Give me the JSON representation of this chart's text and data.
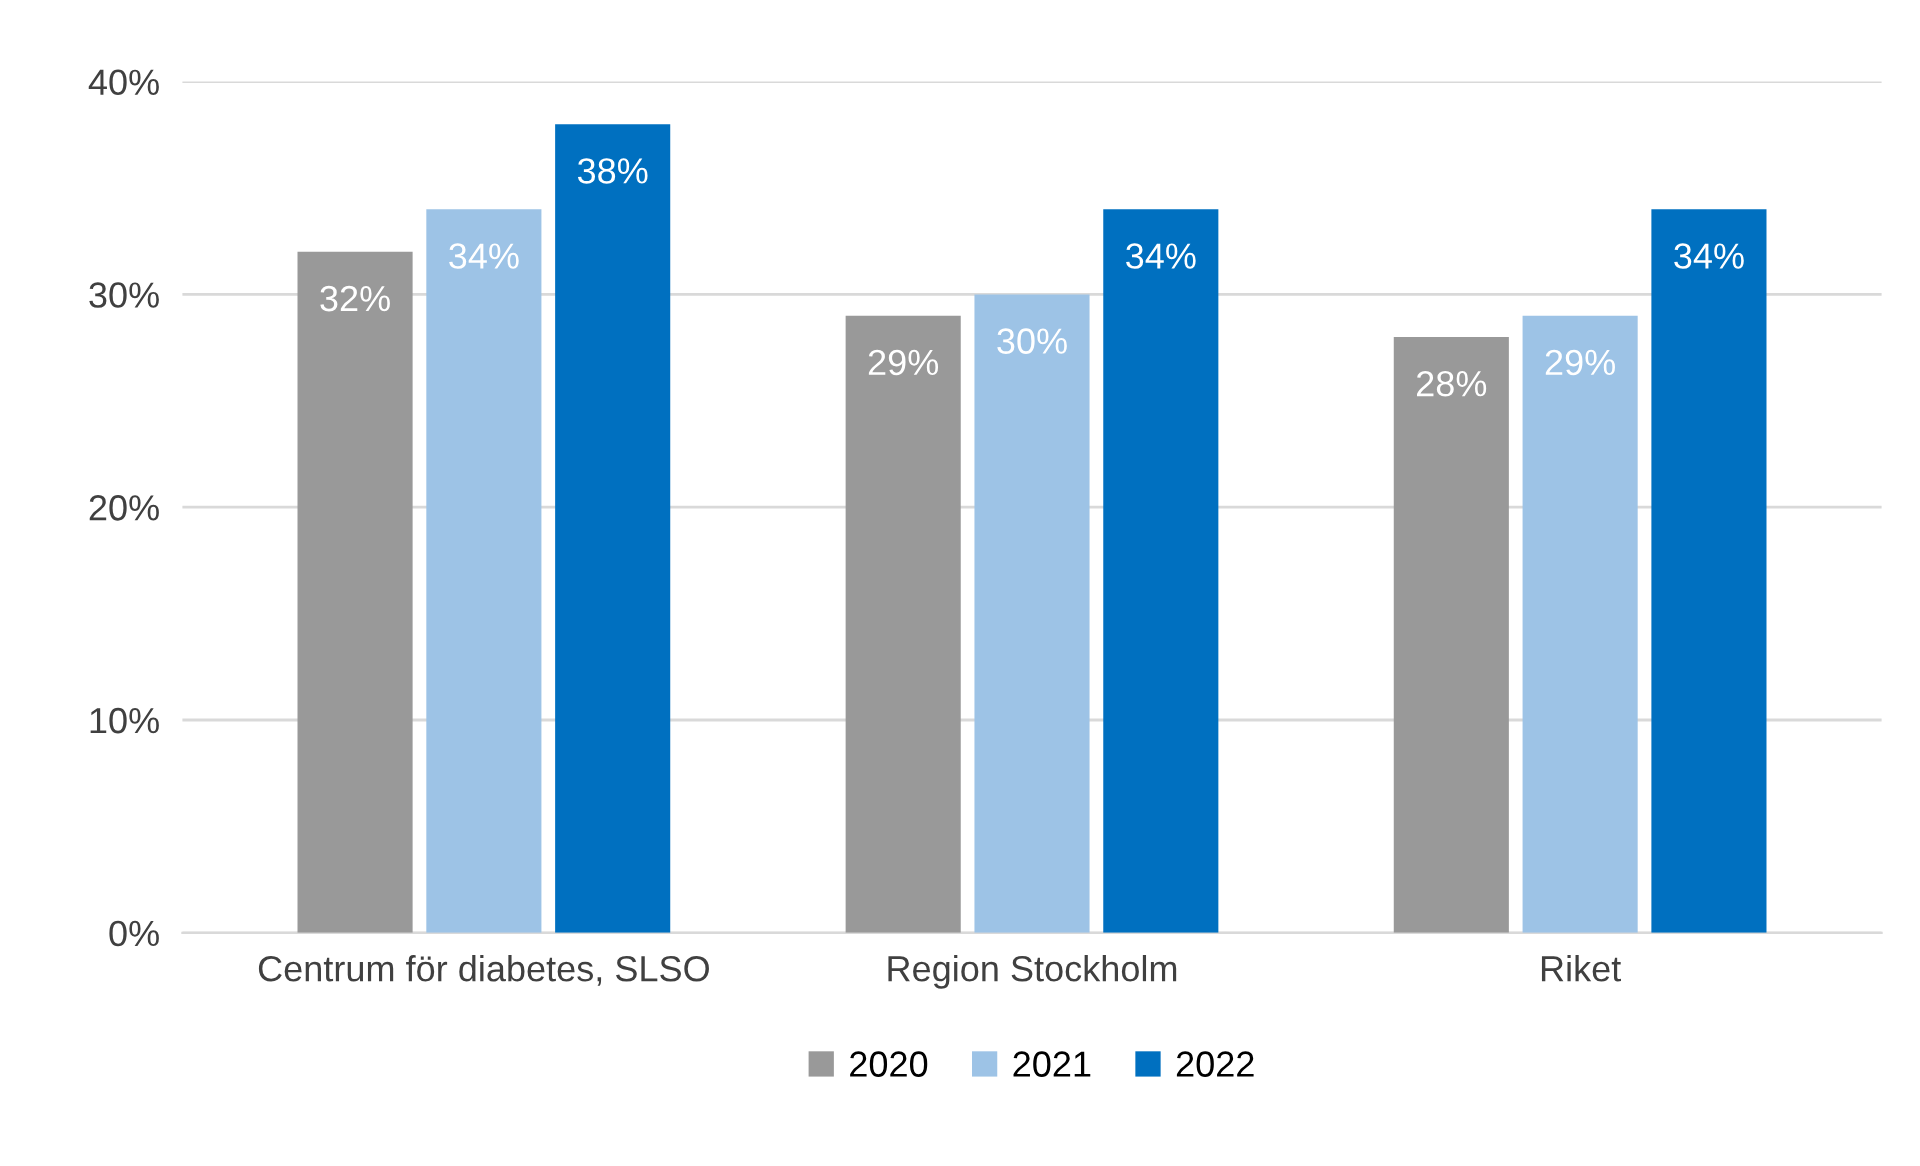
{
  "chart_data": {
    "type": "bar",
    "categories": [
      "Centrum för diabetes, SLSO",
      "Region Stockholm",
      "Riket"
    ],
    "series": [
      {
        "name": "2020",
        "color": "#999999",
        "values": [
          32,
          29,
          28
        ],
        "value_labels": [
          "32%",
          "29%",
          "28%"
        ]
      },
      {
        "name": "2021",
        "color": "#9dc3e6",
        "values": [
          34,
          30,
          29
        ],
        "value_labels": [
          "34%",
          "30%",
          "29%"
        ]
      },
      {
        "name": "2022",
        "color": "#0070c0",
        "values": [
          38,
          34,
          34
        ],
        "value_labels": [
          "38%",
          "34%",
          "34%"
        ]
      }
    ],
    "ylim": [
      0,
      40
    ],
    "yticks": [
      {
        "value": 0,
        "label": "0%"
      },
      {
        "value": 10,
        "label": "10%"
      },
      {
        "value": 20,
        "label": "20%"
      },
      {
        "value": 30,
        "label": "30%"
      },
      {
        "value": 40,
        "label": "40%"
      }
    ],
    "grid": "y",
    "legend": "bottom"
  }
}
